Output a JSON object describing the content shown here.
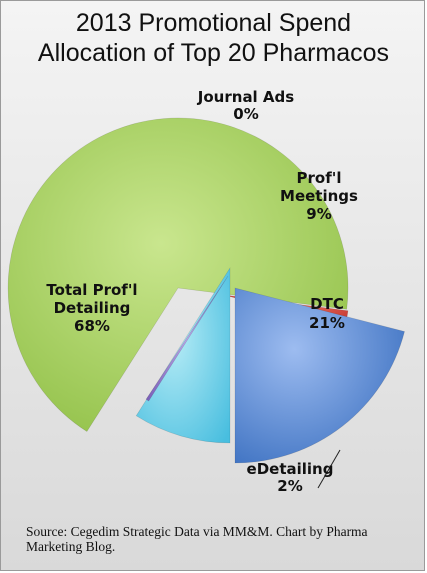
{
  "chart_data": {
    "type": "pie",
    "title": [
      "2013 Promotional Spend",
      "Allocation of Top 20 Pharmacos"
    ],
    "slices": [
      {
        "key": "total-profl-detailing",
        "label": [
          "Total Prof'l",
          "Detailing"
        ],
        "value": 68,
        "value_label": "68%",
        "color": "#a8d163"
      },
      {
        "key": "edetailing",
        "label": [
          "eDetailing"
        ],
        "value": 2,
        "value_label": "2%",
        "color": "#e04a3c"
      },
      {
        "key": "dtc",
        "label": [
          "DTC"
        ],
        "value": 21,
        "value_label": "21%",
        "color": "#4f87d4"
      },
      {
        "key": "profl-meetings",
        "label": [
          "Prof'l",
          "Meetings"
        ],
        "value": 9,
        "value_label": "9%",
        "color": "#6fd1ea"
      },
      {
        "key": "journal-ads",
        "label": [
          "Journal Ads"
        ],
        "value": 0,
        "value_label": "0%",
        "color": "#9b7fd0"
      }
    ],
    "source": "Source: Cegedim Strategic Data via MM&M. Chart by Pharma Marketing Blog."
  }
}
